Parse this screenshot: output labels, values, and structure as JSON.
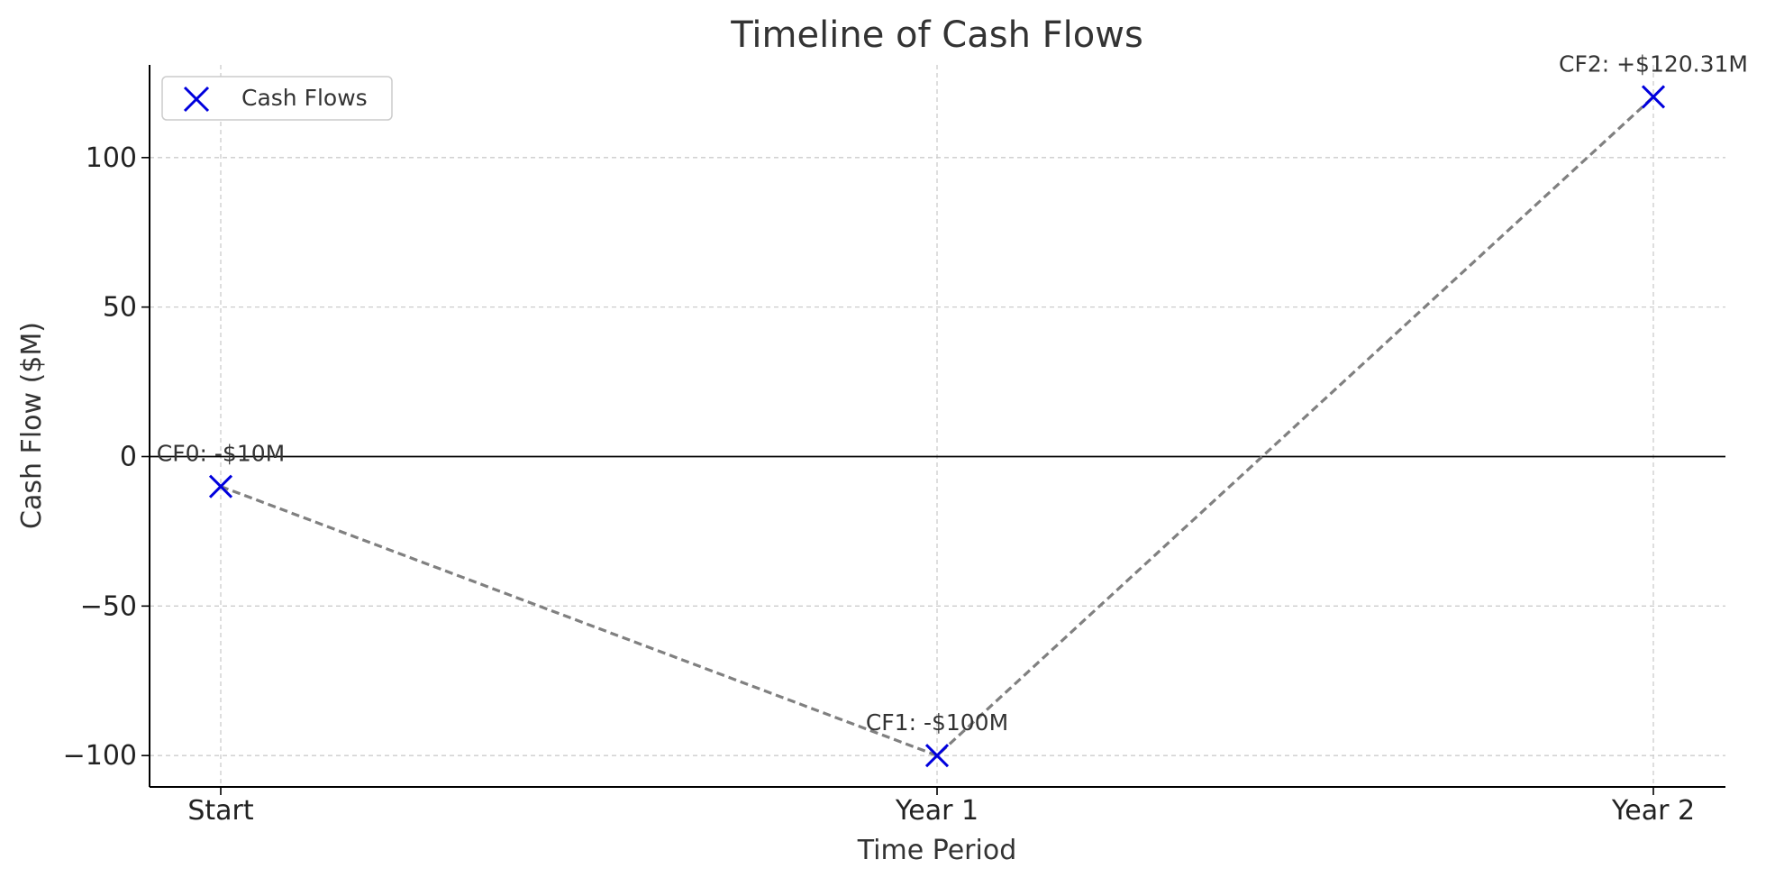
{
  "chart_data": {
    "type": "line",
    "title": "Timeline of Cash Flows",
    "xlabel": "Time Period",
    "ylabel": "Cash Flow ($M)",
    "categories": [
      "Start",
      "Year 1",
      "Year 2"
    ],
    "series": [
      {
        "name": "Cash Flows",
        "values": [
          -10,
          -100,
          120.31
        ],
        "marker": "x",
        "marker_color": "#0000dd",
        "line_style": "dashed",
        "line_color": "#808080"
      }
    ],
    "annotations": [
      "CF0: -$10M",
      "CF1: -$100M",
      "CF2: +$120.31M"
    ],
    "ylim": [
      -110.5,
      131
    ],
    "yticks": [
      -100,
      -50,
      0,
      50,
      100
    ],
    "ytick_labels": [
      "−100",
      "−50",
      "0",
      "50",
      "100"
    ],
    "zero_line": true,
    "grid": true,
    "legend_position": "upper-left"
  }
}
